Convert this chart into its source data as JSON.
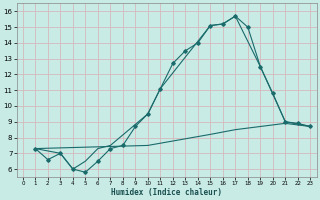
{
  "xlabel": "Humidex (Indice chaleur)",
  "bg_color": "#c8ebe6",
  "grid_color": "#d4b8bc",
  "line_color": "#1a6b6b",
  "xlim": [
    -0.5,
    23.5
  ],
  "ylim": [
    5.5,
    16.5
  ],
  "xticks": [
    0,
    1,
    2,
    3,
    4,
    5,
    6,
    7,
    8,
    9,
    10,
    11,
    12,
    13,
    14,
    15,
    16,
    17,
    18,
    19,
    20,
    21,
    22,
    23
  ],
  "yticks": [
    6,
    7,
    8,
    9,
    10,
    11,
    12,
    13,
    14,
    15,
    16
  ],
  "line1_x": [
    1,
    2,
    3,
    4,
    5,
    6,
    7,
    8,
    9,
    10,
    11,
    12,
    13,
    14,
    15,
    16,
    17,
    18,
    19,
    20,
    21,
    22,
    23
  ],
  "line1_y": [
    7.3,
    6.6,
    7.0,
    6.0,
    5.8,
    6.5,
    7.3,
    7.5,
    8.7,
    9.5,
    11.1,
    12.7,
    13.5,
    14.0,
    15.1,
    15.2,
    15.7,
    15.0,
    12.5,
    10.8,
    9.0,
    8.9,
    8.7
  ],
  "line2_x": [
    1,
    3,
    4,
    5,
    6,
    7,
    10,
    11,
    15,
    16,
    17,
    19,
    21,
    23
  ],
  "line2_y": [
    7.3,
    7.0,
    6.0,
    6.5,
    7.3,
    7.5,
    9.5,
    11.1,
    15.1,
    15.2,
    15.7,
    12.5,
    9.0,
    8.7
  ],
  "line3_x": [
    1,
    10,
    15,
    17,
    19,
    21,
    23
  ],
  "line3_y": [
    7.3,
    7.5,
    8.2,
    8.5,
    8.7,
    8.9,
    8.7
  ]
}
